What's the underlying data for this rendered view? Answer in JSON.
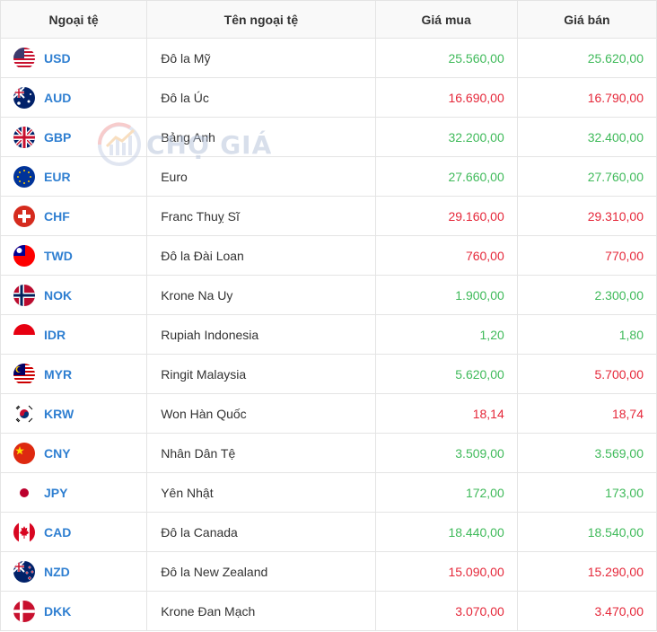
{
  "headers": {
    "code": "Ngoại tệ",
    "name": "Tên ngoại tệ",
    "buy": "Giá mua",
    "sell": "Giá bán"
  },
  "watermark": "CHỢ GIÁ",
  "colors": {
    "up": "#3fba5a",
    "down": "#e5283a",
    "code": "#2f7fd1"
  },
  "rows": [
    {
      "flag": "us-flag-icon",
      "code": "USD",
      "name": "Đô la Mỹ",
      "buy": "25.560,00",
      "sell": "25.620,00",
      "trend": "up"
    },
    {
      "flag": "au-flag-icon",
      "code": "AUD",
      "name": "Đô la Úc",
      "buy": "16.690,00",
      "sell": "16.790,00",
      "trend": "down"
    },
    {
      "flag": "gb-flag-icon",
      "code": "GBP",
      "name": "Bảng Anh",
      "buy": "32.200,00",
      "sell": "32.400,00",
      "trend": "up"
    },
    {
      "flag": "eu-flag-icon",
      "code": "EUR",
      "name": "Euro",
      "buy": "27.660,00",
      "sell": "27.760,00",
      "trend": "up"
    },
    {
      "flag": "ch-flag-icon",
      "code": "CHF",
      "name": "Franc Thuỵ Sĩ",
      "buy": "29.160,00",
      "sell": "29.310,00",
      "trend": "down"
    },
    {
      "flag": "tw-flag-icon",
      "code": "TWD",
      "name": "Đô la Đài Loan",
      "buy": "760,00",
      "sell": "770,00",
      "trend": "down"
    },
    {
      "flag": "no-flag-icon",
      "code": "NOK",
      "name": "Krone Na Uy",
      "buy": "1.900,00",
      "sell": "2.300,00",
      "trend": "up"
    },
    {
      "flag": "id-flag-icon",
      "code": "IDR",
      "name": "Rupiah Indonesia",
      "buy": "1,20",
      "sell": "1,80",
      "trend": "up"
    },
    {
      "flag": "my-flag-icon",
      "code": "MYR",
      "name": "Ringit Malaysia",
      "buy": "5.620,00",
      "sell": "5.700,00",
      "trend": "up",
      "sell_trend": "down"
    },
    {
      "flag": "kr-flag-icon",
      "code": "KRW",
      "name": "Won Hàn Quốc",
      "buy": "18,14",
      "sell": "18,74",
      "trend": "down"
    },
    {
      "flag": "cn-flag-icon",
      "code": "CNY",
      "name": "Nhân Dân Tệ",
      "buy": "3.509,00",
      "sell": "3.569,00",
      "trend": "up"
    },
    {
      "flag": "jp-flag-icon",
      "code": "JPY",
      "name": "Yên Nhật",
      "buy": "172,00",
      "sell": "173,00",
      "trend": "up"
    },
    {
      "flag": "ca-flag-icon",
      "code": "CAD",
      "name": "Đô la Canada",
      "buy": "18.440,00",
      "sell": "18.540,00",
      "trend": "up"
    },
    {
      "flag": "nz-flag-icon",
      "code": "NZD",
      "name": "Đô la New Zealand",
      "buy": "15.090,00",
      "sell": "15.290,00",
      "trend": "down"
    },
    {
      "flag": "dk-flag-icon",
      "code": "DKK",
      "name": "Krone Đan Mạch",
      "buy": "3.070,00",
      "sell": "3.470,00",
      "trend": "down"
    }
  ]
}
